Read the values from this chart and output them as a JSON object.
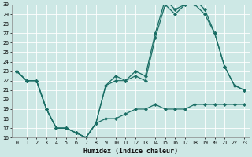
{
  "xlabel": "Humidex (Indice chaleur)",
  "bg_color": "#cde8e5",
  "line_color": "#1a6e65",
  "grid_color": "#ffffff",
  "ylim": [
    16,
    30
  ],
  "xlim": [
    -0.5,
    23.5
  ],
  "yticks": [
    16,
    17,
    18,
    19,
    20,
    21,
    22,
    23,
    24,
    25,
    26,
    27,
    28,
    29,
    30
  ],
  "xticks": [
    0,
    1,
    2,
    3,
    4,
    5,
    6,
    7,
    8,
    9,
    10,
    11,
    12,
    13,
    14,
    15,
    16,
    17,
    18,
    19,
    20,
    21,
    22,
    23
  ],
  "line1_x": [
    0,
    1,
    2,
    3,
    4,
    5,
    6,
    7,
    8,
    9,
    10,
    11,
    12,
    13,
    14,
    15,
    16,
    17,
    18,
    19,
    20,
    21,
    22,
    23
  ],
  "line1_y": [
    23,
    22,
    22,
    19,
    17,
    17,
    16.5,
    16,
    17.5,
    18,
    18,
    18.5,
    19,
    19,
    19.5,
    19,
    19,
    19,
    19.5,
    19.5,
    19.5,
    19.5,
    19.5,
    19.5
  ],
  "line2_x": [
    0,
    1,
    2,
    3,
    4,
    5,
    6,
    7,
    8,
    9,
    10,
    11,
    12,
    13,
    14,
    15,
    16,
    17,
    18,
    19,
    20,
    21,
    22,
    23
  ],
  "line2_y": [
    23,
    22,
    22,
    19,
    17,
    17,
    16.5,
    16,
    17.5,
    21.5,
    22,
    22,
    22.5,
    22,
    26.5,
    30,
    29,
    30,
    30,
    29,
    27,
    23.5,
    21.5,
    21
  ],
  "line3_x": [
    0,
    1,
    2,
    3,
    4,
    5,
    6,
    7,
    8,
    9,
    10,
    11,
    12,
    13,
    14,
    15,
    16,
    17,
    18,
    19,
    20,
    21,
    22,
    23
  ],
  "line3_y": [
    23,
    22,
    22,
    19,
    17,
    17,
    16.5,
    16,
    17.5,
    21.5,
    22.5,
    22,
    23,
    22.5,
    27,
    30.5,
    29.5,
    30,
    30.5,
    29.5,
    27,
    23.5,
    21.5,
    21
  ]
}
